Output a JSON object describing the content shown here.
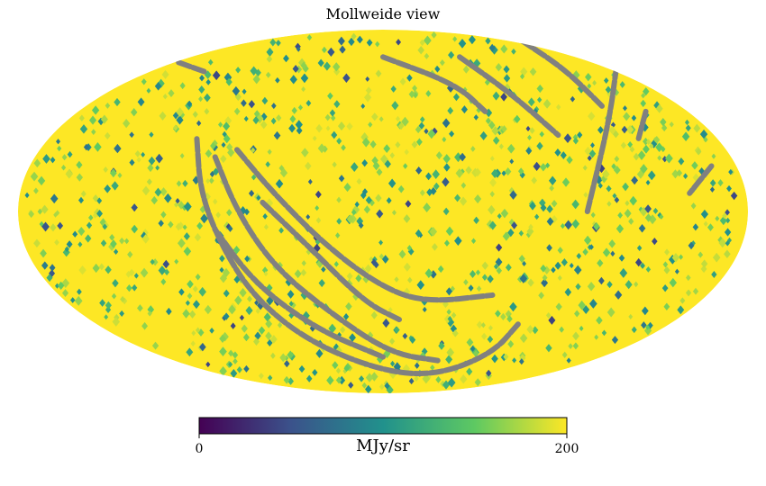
{
  "chart_data": {
    "type": "heatmap",
    "projection": "mollweide",
    "title": "Mollweide view",
    "colormap": "viridis",
    "colormap_stops": [
      "#440154",
      "#3b528b",
      "#21918c",
      "#5ec962",
      "#fde725"
    ],
    "bad_color": "#808080",
    "background_value": 200,
    "vmin": 0,
    "vmax": 200,
    "colorbar": {
      "unit": "MJy/sr",
      "ticks": [
        "0",
        "200"
      ],
      "placement": "bottom"
    },
    "masked_arcs": [
      {
        "points": [
          [
            -0.51,
            0.4
          ],
          [
            -0.5,
            0.1
          ],
          [
            -0.44,
            -0.2
          ],
          [
            -0.35,
            -0.48
          ],
          [
            -0.2,
            -0.72
          ],
          [
            0.0,
            -0.88
          ],
          [
            0.15,
            -0.9
          ],
          [
            0.3,
            -0.78
          ],
          [
            0.37,
            -0.62
          ]
        ]
      },
      {
        "points": [
          [
            -0.46,
            0.3
          ],
          [
            -0.4,
            0.0
          ],
          [
            -0.3,
            -0.3
          ],
          [
            -0.15,
            -0.55
          ],
          [
            0.02,
            -0.78
          ],
          [
            0.15,
            -0.82
          ]
        ]
      },
      {
        "points": [
          [
            -0.4,
            0.34
          ],
          [
            -0.3,
            0.1
          ],
          [
            -0.15,
            -0.2
          ],
          [
            0.0,
            -0.42
          ],
          [
            0.12,
            -0.5
          ],
          [
            0.3,
            -0.46
          ]
        ]
      },
      {
        "points": [
          [
            -0.33,
            0.05
          ],
          [
            -0.2,
            -0.2
          ],
          [
            -0.05,
            -0.5
          ],
          [
            0.05,
            -0.6
          ]
        ]
      },
      {
        "points": [
          [
            -0.46,
            -0.1
          ],
          [
            -0.35,
            -0.4
          ],
          [
            -0.18,
            -0.65
          ],
          [
            0.0,
            -0.8
          ]
        ]
      },
      {
        "points": [
          [
            0.21,
            0.85
          ],
          [
            0.35,
            0.65
          ],
          [
            0.48,
            0.42
          ]
        ]
      },
      {
        "points": [
          [
            0.38,
            0.94
          ],
          [
            0.5,
            0.78
          ],
          [
            0.6,
            0.58
          ]
        ]
      },
      {
        "points": [
          [
            0.0,
            0.85
          ],
          [
            0.2,
            0.7
          ],
          [
            0.28,
            0.55
          ]
        ]
      },
      {
        "points": [
          [
            0.64,
            0.8
          ],
          [
            0.62,
            0.5
          ],
          [
            0.56,
            0.0
          ]
        ]
      },
      {
        "points": [
          [
            0.72,
            0.55
          ],
          [
            0.7,
            0.4
          ]
        ]
      },
      {
        "points": [
          [
            0.9,
            0.25
          ],
          [
            0.84,
            0.1
          ]
        ]
      },
      {
        "points": [
          [
            -0.56,
            0.82
          ],
          [
            -0.49,
            0.77
          ]
        ]
      }
    ]
  }
}
